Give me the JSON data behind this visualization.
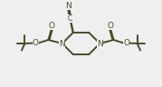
{
  "background_color": "#efefef",
  "line_color": "#4a4a28",
  "line_width": 1.4,
  "font_size": 6.5,
  "fig_width": 1.79,
  "fig_height": 0.96,
  "dpi": 100,
  "xlim": [
    -2.2,
    2.2
  ],
  "ylim": [
    -1.1,
    1.1
  ]
}
